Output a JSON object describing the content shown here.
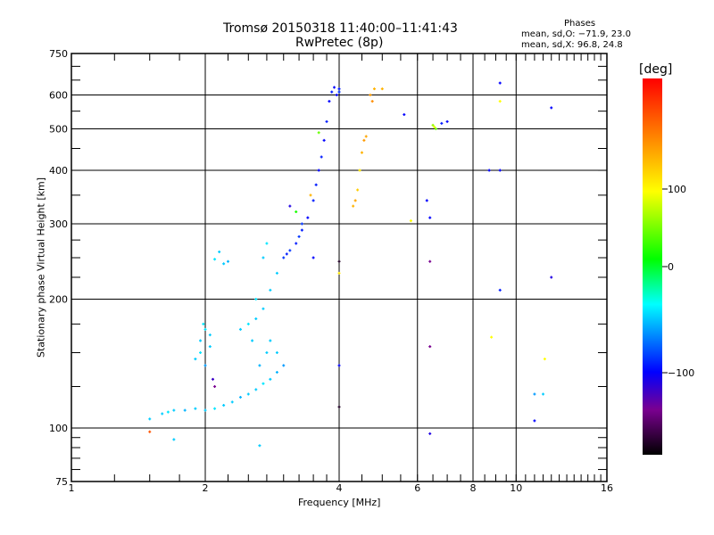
{
  "chart_data": {
    "type": "scatter",
    "title": "Tromsø 20150318 11:40:00–11:41:43",
    "subtitle": "RwPretec (8p)",
    "xlabel": "Frequency [MHz]",
    "ylabel": "Stationary phase Virtual Height [km]",
    "xscale": "log",
    "yscale": "log",
    "xlim": [
      1,
      16
    ],
    "ylim": [
      75,
      750
    ],
    "xticks": [
      "1",
      "2",
      "4",
      "6",
      "8",
      "10",
      "16"
    ],
    "xtick_values": [
      1,
      2,
      4,
      6,
      8,
      10,
      16
    ],
    "yticks": [
      "75",
      "100",
      "200",
      "300",
      "400",
      "500",
      "600",
      "750"
    ],
    "ytick_values": [
      75,
      100,
      200,
      300,
      400,
      500,
      600,
      750
    ],
    "grid": true,
    "phase_stats": {
      "header": "Phases",
      "o": "mean, sd,O: −71.9, 23.0",
      "x": "mean, sd,X:  96.8, 24.8"
    },
    "colorbar": {
      "label": "[deg]",
      "ticks": [
        "100",
        "0",
        "−100"
      ],
      "tick_values": [
        100,
        0,
        -100
      ],
      "range": [
        -180,
        180
      ]
    },
    "points": [
      [
        1.5,
        105,
        -60
      ],
      [
        1.6,
        108,
        -60
      ],
      [
        1.65,
        109,
        -55
      ],
      [
        1.7,
        110,
        -60
      ],
      [
        1.8,
        110,
        -65
      ],
      [
        1.9,
        111,
        -60
      ],
      [
        2.0,
        110,
        -60
      ],
      [
        2.1,
        111,
        -55
      ],
      [
        2.2,
        113,
        -60
      ],
      [
        2.3,
        115,
        -60
      ],
      [
        2.4,
        118,
        -65
      ],
      [
        2.5,
        120,
        -60
      ],
      [
        2.6,
        123,
        -60
      ],
      [
        2.7,
        127,
        -55
      ],
      [
        2.8,
        130,
        -60
      ],
      [
        2.9,
        135,
        -65
      ],
      [
        3.0,
        140,
        -70
      ],
      [
        1.9,
        145,
        -60
      ],
      [
        1.95,
        150,
        -55
      ],
      [
        1.95,
        160,
        -60
      ],
      [
        2.0,
        170,
        -55
      ],
      [
        2.05,
        165,
        -60
      ],
      [
        2.0,
        140,
        -70
      ],
      [
        2.05,
        155,
        -60
      ],
      [
        1.98,
        175,
        -55
      ],
      [
        2.08,
        130,
        -120
      ],
      [
        2.1,
        125,
        -140
      ],
      [
        2.1,
        248,
        -55
      ],
      [
        2.15,
        258,
        -60
      ],
      [
        2.2,
        242,
        -60
      ],
      [
        2.25,
        245,
        -65
      ],
      [
        2.4,
        170,
        -60
      ],
      [
        2.5,
        175,
        -55
      ],
      [
        2.6,
        180,
        -60
      ],
      [
        2.7,
        190,
        -60
      ],
      [
        2.8,
        210,
        -60
      ],
      [
        2.9,
        230,
        -60
      ],
      [
        2.6,
        200,
        -55
      ],
      [
        2.55,
        160,
        -60
      ],
      [
        2.7,
        250,
        -60
      ],
      [
        2.75,
        270,
        -55
      ],
      [
        2.8,
        160,
        -60
      ],
      [
        2.9,
        150,
        -60
      ],
      [
        2.65,
        140,
        -65
      ],
      [
        2.75,
        150,
        -60
      ],
      [
        3.0,
        250,
        -90
      ],
      [
        3.05,
        255,
        -95
      ],
      [
        3.1,
        260,
        -90
      ],
      [
        3.2,
        270,
        -95
      ],
      [
        3.3,
        290,
        -95
      ],
      [
        3.4,
        310,
        -100
      ],
      [
        3.5,
        340,
        -95
      ],
      [
        3.55,
        370,
        -95
      ],
      [
        3.6,
        400,
        -100
      ],
      [
        3.65,
        430,
        -95
      ],
      [
        3.7,
        470,
        -100
      ],
      [
        3.75,
        520,
        -95
      ],
      [
        3.8,
        580,
        -100
      ],
      [
        3.85,
        610,
        -95
      ],
      [
        3.9,
        625,
        -100
      ],
      [
        4.0,
        620,
        -95
      ],
      [
        3.95,
        600,
        -100
      ],
      [
        4.0,
        610,
        -90
      ],
      [
        3.3,
        300,
        -90
      ],
      [
        3.25,
        280,
        -90
      ],
      [
        3.1,
        330,
        -110
      ],
      [
        3.2,
        320,
        10
      ],
      [
        3.45,
        350,
        130
      ],
      [
        4.3,
        330,
        130
      ],
      [
        4.35,
        340,
        135
      ],
      [
        4.4,
        360,
        120
      ],
      [
        4.45,
        400,
        110
      ],
      [
        4.5,
        440,
        130
      ],
      [
        4.55,
        470,
        140
      ],
      [
        4.6,
        480,
        135
      ],
      [
        4.7,
        600,
        140
      ],
      [
        4.8,
        620,
        130
      ],
      [
        4.75,
        580,
        145
      ],
      [
        1.5,
        98,
        160
      ],
      [
        1.7,
        94,
        -60
      ],
      [
        2.65,
        91,
        -60
      ],
      [
        6.5,
        510,
        60
      ],
      [
        6.55,
        505,
        90
      ],
      [
        7.0,
        520,
        -100
      ],
      [
        6.8,
        515,
        -95
      ],
      [
        6.6,
        500,
        40
      ],
      [
        5.6,
        540,
        -100
      ],
      [
        5.0,
        620,
        130
      ],
      [
        6.3,
        340,
        -100
      ],
      [
        6.4,
        310,
        -100
      ],
      [
        6.4,
        245,
        -140
      ],
      [
        6.4,
        155,
        -140
      ],
      [
        6.4,
        97,
        -110
      ],
      [
        9.2,
        640,
        -100
      ],
      [
        9.2,
        580,
        100
      ],
      [
        8.7,
        400,
        -100
      ],
      [
        9.2,
        400,
        -100
      ],
      [
        9.2,
        210,
        -95
      ],
      [
        8.8,
        163,
        100
      ],
      [
        11,
        120,
        -70
      ],
      [
        11,
        104,
        -100
      ],
      [
        11.5,
        120,
        -60
      ],
      [
        12,
        560,
        -100
      ],
      [
        12,
        225,
        -110
      ],
      [
        11.6,
        145,
        100
      ],
      [
        4.0,
        140,
        -100
      ],
      [
        4.0,
        112,
        -170
      ],
      [
        4.0,
        245,
        -170
      ],
      [
        3.5,
        250,
        -100
      ],
      [
        3.6,
        490,
        40
      ],
      [
        5.8,
        305,
        100
      ],
      [
        4.0,
        230,
        110
      ]
    ]
  }
}
